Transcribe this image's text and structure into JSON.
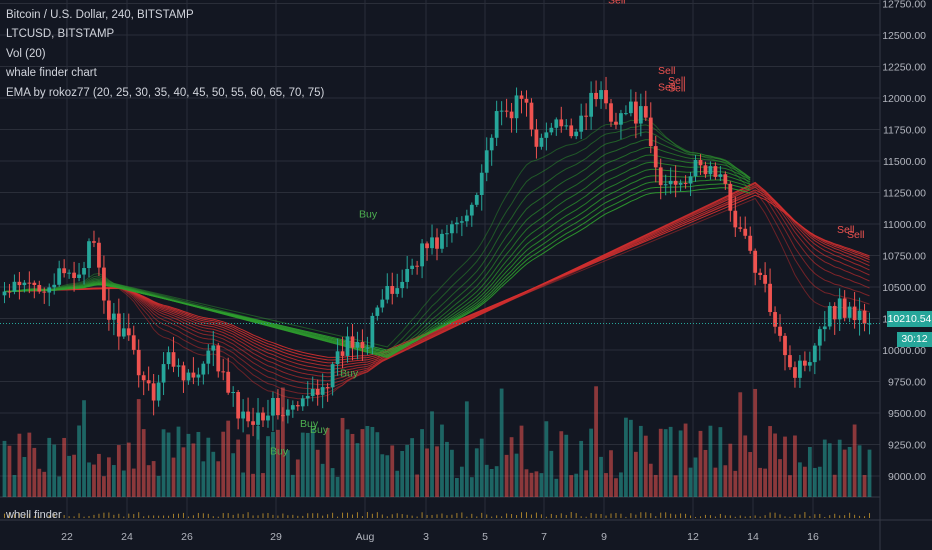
{
  "legend": {
    "symbol": "Bitcoin / U.S. Dollar, 240, BITSTAMP",
    "compare": "LTCUSD, BITSTAMP",
    "volume": "Vol (20)",
    "indicator1": "whale finder chart",
    "indicator2": "EMA by rokoz77 (20, 25, 30, 35, 40, 45, 50, 55, 60, 65, 70, 75)"
  },
  "sub_pane_label": "whell finder",
  "last_price_badge": "10210.54",
  "countdown_badge": "30:12",
  "colors": {
    "background": "#131722",
    "up": "#26a69a",
    "down": "#ef5350",
    "ema_bear": "#d32f2f",
    "ema_bull": "#2e9e2e",
    "grid": "#2a2e39",
    "axis_text": "#b2b5be",
    "buy_label": "#4caf50",
    "sell_label": "#ef5350",
    "whale_bars": "#c99a2e"
  },
  "chart_data": {
    "type": "candlestick",
    "symbol": "Bitcoin / U.S. Dollar",
    "interval": "240",
    "exchange": "BITSTAMP",
    "y_axis": {
      "ticks": [
        "12750.00",
        "12500.00",
        "12250.00",
        "12000.00",
        "11750.00",
        "11500.00",
        "11250.00",
        "11000.00",
        "10750.00",
        "10500.00",
        "10250.00",
        "10000.00",
        "9750.00",
        "9500.00",
        "9250.00",
        "9000.00"
      ],
      "range": [
        8800,
        12850
      ]
    },
    "x_axis": {
      "labels": [
        "22",
        "24",
        "26",
        "29",
        "Aug",
        "3",
        "5",
        "7",
        "9",
        "12",
        "14",
        "16"
      ]
    },
    "price_path": [
      [
        "22",
        10450
      ],
      [
        "22",
        10600
      ],
      [
        "23",
        10850
      ],
      [
        "23",
        10300
      ],
      [
        "24",
        10150
      ],
      [
        "24",
        9900
      ],
      [
        "25",
        9650
      ],
      [
        "25",
        9950
      ],
      [
        "26",
        9850
      ],
      [
        "26",
        9750
      ],
      [
        "27",
        10000
      ],
      [
        "27",
        9700
      ],
      [
        "28",
        9450
      ],
      [
        "28",
        9500
      ],
      [
        "29",
        9550
      ],
      [
        "29",
        9500
      ],
      [
        "30",
        9550
      ],
      [
        "30",
        9700
      ],
      [
        "31",
        9800
      ],
      [
        "31",
        10050
      ],
      [
        "Aug",
        10100
      ],
      [
        "1",
        10300
      ],
      [
        "2",
        10450
      ],
      [
        "2",
        10600
      ],
      [
        "3",
        10800
      ],
      [
        "3",
        10850
      ],
      [
        "4",
        10950
      ],
      [
        "4",
        11050
      ],
      [
        "5",
        11400
      ],
      [
        "5",
        11800
      ],
      [
        "6",
        11900
      ],
      [
        "6",
        12000
      ],
      [
        "7",
        11600
      ],
      [
        "7",
        11800
      ],
      [
        "8",
        11700
      ],
      [
        "8",
        11900
      ],
      [
        "9",
        12050
      ],
      [
        "9",
        11850
      ],
      [
        "10",
        11900
      ],
      [
        "10",
        11850
      ],
      [
        "11",
        11300
      ],
      [
        "11",
        11350
      ],
      [
        "12",
        11400
      ],
      [
        "12",
        11450
      ],
      [
        "13",
        11400
      ],
      [
        "13",
        11100
      ],
      [
        "14",
        10800
      ],
      [
        "14",
        10500
      ],
      [
        "15",
        10200
      ],
      [
        "15",
        9800
      ],
      [
        "16",
        9950
      ],
      [
        "16",
        10250
      ],
      [
        "17",
        10350
      ],
      [
        "17",
        10300
      ],
      [
        "18",
        10210.54
      ]
    ],
    "ema_periods": [
      20,
      25,
      30,
      35,
      40,
      45,
      50,
      55,
      60,
      65,
      70,
      75
    ],
    "signals": [
      {
        "label": "Buy",
        "x": "Aug",
        "price": 11050
      },
      {
        "label": "Buy",
        "x": "31",
        "price": 9790
      },
      {
        "label": "Buy",
        "x": "30",
        "price": 9390
      },
      {
        "label": "Buy",
        "x": "30",
        "price": 9340
      },
      {
        "label": "Buy",
        "x": "29",
        "price": 9170
      },
      {
        "label": "Sell",
        "x": "9",
        "price": 12750
      },
      {
        "label": "Sell",
        "x": "11",
        "price": 12190
      },
      {
        "label": "Sell",
        "x": "11",
        "price": 12110
      },
      {
        "label": "Sell",
        "x": "11",
        "price": 12060
      },
      {
        "label": "Sell",
        "x": "11",
        "price": 12050
      },
      {
        "label": "Sell",
        "x": "17",
        "price": 10930
      },
      {
        "label": "Sell",
        "x": "17",
        "price": 10890
      }
    ],
    "last_price": 10210.54
  }
}
